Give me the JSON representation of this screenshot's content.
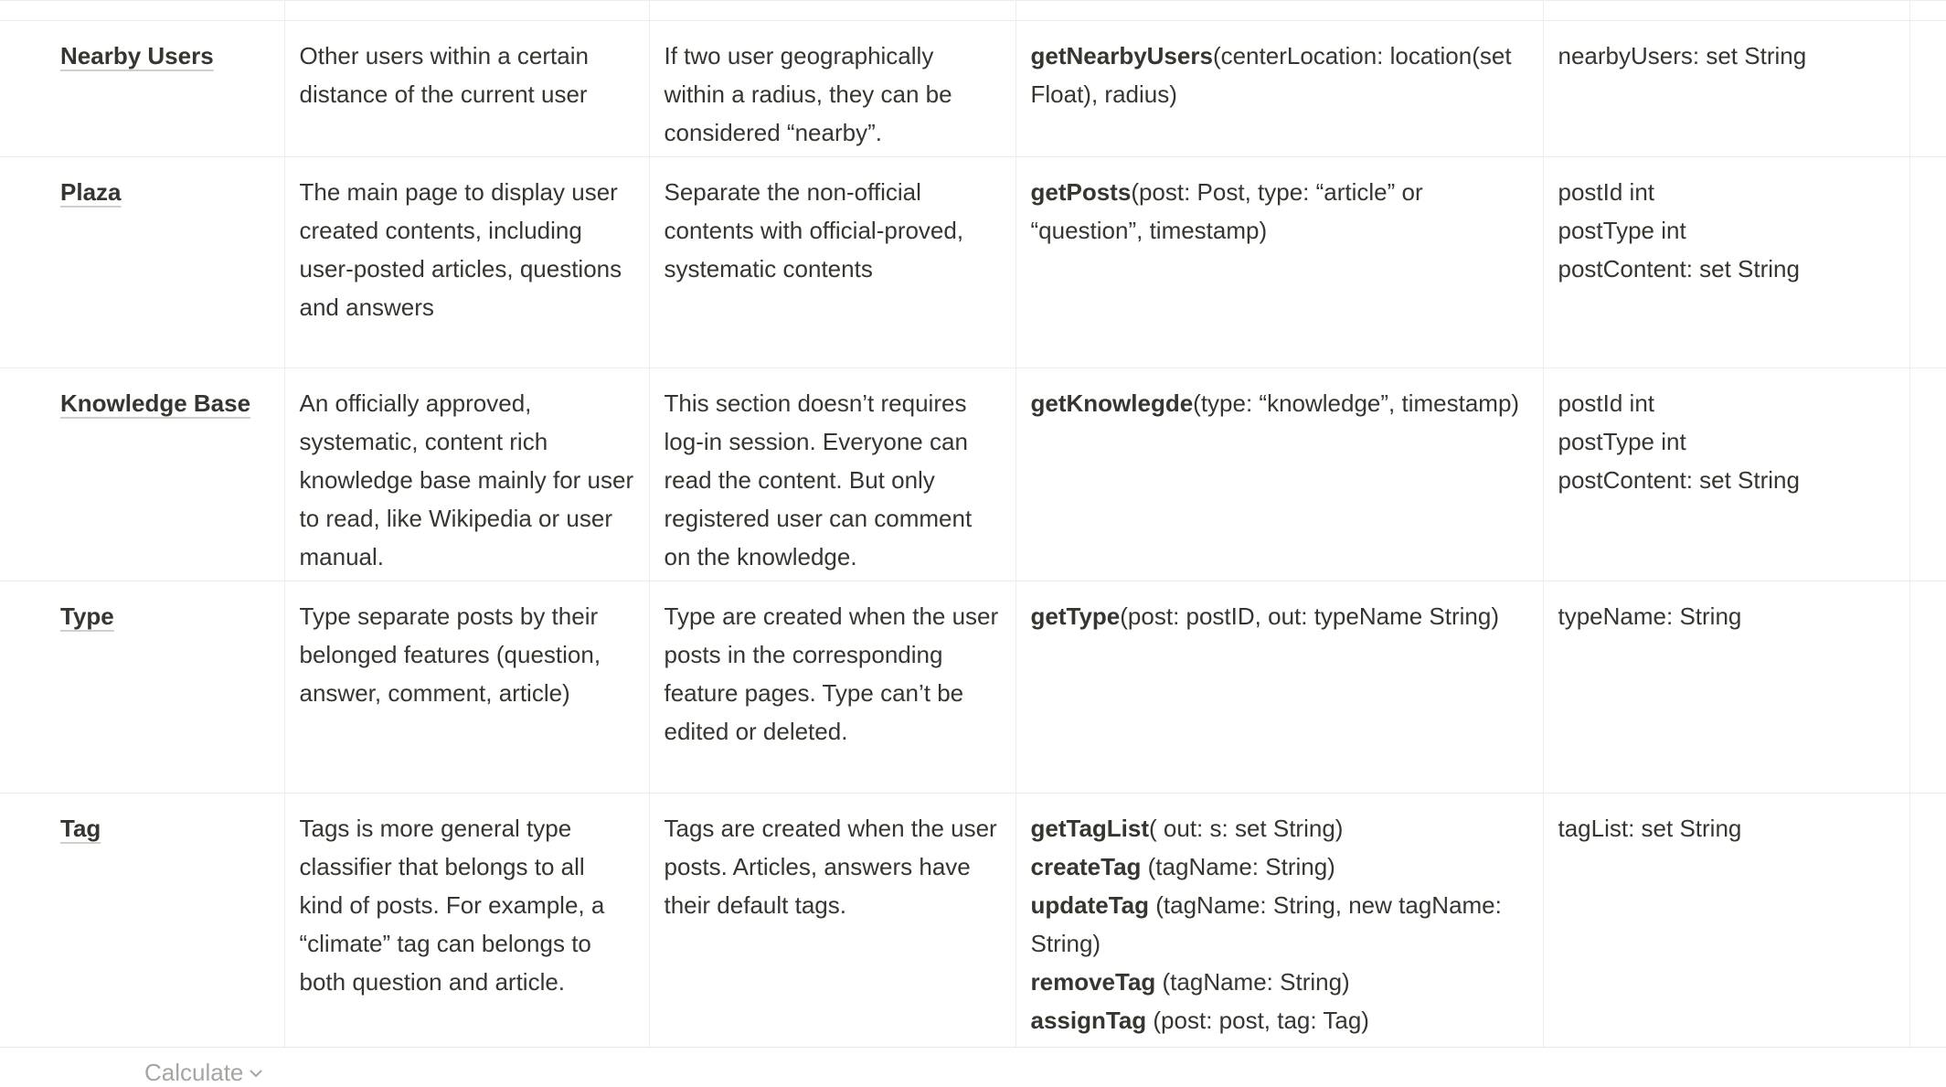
{
  "table": {
    "rows": [
      {
        "name": "Nearby Users",
        "description": "Other users within a certain distance of the current user",
        "rule": "If two user geographically within a radius, they can be considered “nearby”.",
        "functions": [
          {
            "name": "getNearbyUsers",
            "args": "(centerLocation: location(set Float), radius)"
          }
        ],
        "fields": [
          "nearbyUsers: set String"
        ]
      },
      {
        "name": "Plaza",
        "description": "The main page to display user created contents, including user-posted articles, questions and answers",
        "rule": "Separate the non-official contents with official-proved, systematic contents",
        "functions": [
          {
            "name": "getPosts",
            "args": "(post: Post, type: “article” or “question”, timestamp)"
          }
        ],
        "fields": [
          "postId int",
          "postType int",
          "postContent: set String"
        ]
      },
      {
        "name": "Knowledge Base",
        "description": "An officially approved, systematic, content rich knowledge base mainly for user to read, like Wikipedia or user manual.",
        "rule": "This section doesn’t requires log-in session. Everyone can read the content. But only registered user can comment on the knowledge.",
        "functions": [
          {
            "name": "getKnowlegde",
            "args": "(type: “knowledge”, timestamp)"
          }
        ],
        "fields": [
          "postId int",
          "postType int",
          "postContent: set String"
        ]
      },
      {
        "name": "Type",
        "description": "Type separate posts by their belonged features (question, answer, comment, article)",
        "rule": "Type are created when the user posts in the corresponding feature pages. Type can’t be edited or deleted.",
        "functions": [
          {
            "name": "getType",
            "args": "(post: postID, out: typeName String)"
          }
        ],
        "fields": [
          "typeName: String"
        ]
      },
      {
        "name": "Tag",
        "description": "Tags is more general type classifier that belongs to all kind of posts. For example, a “climate” tag can belongs to both question and article.",
        "rule": "Tags are created when the user posts. Articles, answers have their default tags.",
        "functions": [
          {
            "name": "getTagList",
            "args": "( out: s: set String)"
          },
          {
            "name": "createTag",
            "args": " (tagName: String)"
          },
          {
            "name": "updateTag",
            "args": " (tagName: String, new tagName: String)"
          },
          {
            "name": "removeTag",
            "args": " (tagName: String)"
          },
          {
            "name": "assignTag",
            "args": " (post: post, tag: Tag)"
          }
        ],
        "fields": [
          "tagList: set String"
        ]
      }
    ]
  },
  "footer": {
    "calculate": "Calculate"
  }
}
